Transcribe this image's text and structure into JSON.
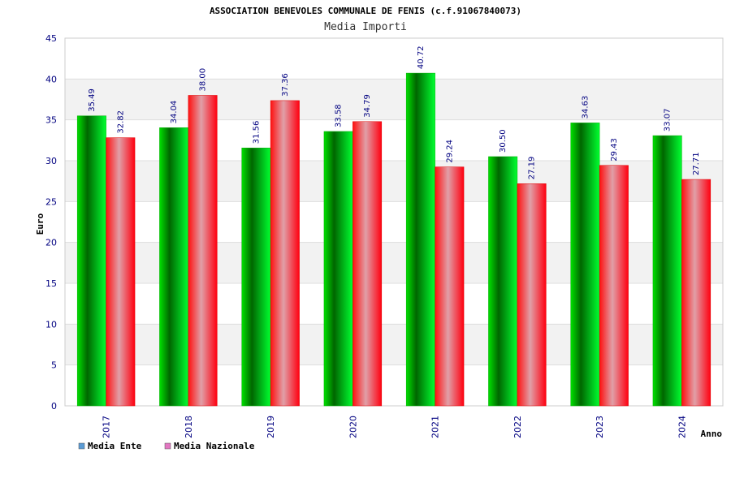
{
  "chart_data": {
    "type": "bar",
    "title": "ASSOCIATION BENEVOLES COMMUNALE DE FENIS (c.f.91067840073)",
    "subtitle": "Media Importi",
    "xlabel": "Anno",
    "ylabel": "Euro",
    "ylim": [
      0,
      45
    ],
    "yticks": [
      0,
      5,
      10,
      15,
      20,
      25,
      30,
      35,
      40,
      45
    ],
    "categories": [
      "2017",
      "2018",
      "2019",
      "2020",
      "2021",
      "2022",
      "2023",
      "2024"
    ],
    "series": [
      {
        "name": "Media Ente",
        "values": [
          35.49,
          34.04,
          31.56,
          33.58,
          40.72,
          30.5,
          34.63,
          33.07
        ],
        "labels": [
          "35.49",
          "34.04",
          "31.56",
          "33.58",
          "40.72",
          "30.50",
          "34.63",
          "33.07"
        ],
        "color": "#00cc00",
        "legend_color": "#5b9bd5"
      },
      {
        "name": "Media Nazionale",
        "values": [
          32.82,
          38.0,
          37.36,
          34.79,
          29.24,
          27.19,
          29.43,
          27.71
        ],
        "labels": [
          "32.82",
          "38.00",
          "37.36",
          "34.79",
          "29.24",
          "27.19",
          "29.43",
          "27.71"
        ],
        "color": "#ff0000",
        "legend_color": "#e377c2"
      }
    ],
    "grid": true,
    "legend": "bottom-left"
  }
}
